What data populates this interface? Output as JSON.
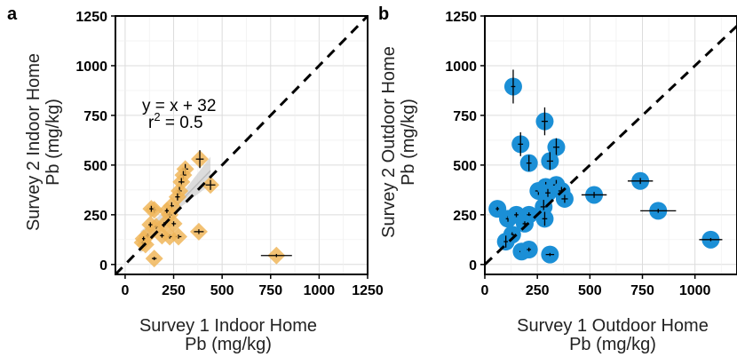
{
  "chart_data": [
    {
      "panel": "a",
      "type": "scatter",
      "xlabel": [
        "Survey 1 Indoor Home",
        "Pb (mg/kg)"
      ],
      "ylabel": [
        "Survey 2 Indoor Home",
        "Pb (mg/kg)"
      ],
      "xlim": [
        -50,
        1250
      ],
      "ylim": [
        -50,
        1250
      ],
      "xticks": [
        0,
        250,
        500,
        750,
        1000,
        1250
      ],
      "yticks": [
        0,
        250,
        500,
        750,
        1000,
        1250
      ],
      "grid": true,
      "marker": "diamond",
      "color": "#F0B65A",
      "identity_line": true,
      "annotation": {
        "eq_line1": "y = x + 32",
        "eq_r": "r",
        "eq_sup": "2",
        "eq_rest": " = 0.5"
      },
      "fit": {
        "slope": 1,
        "intercept": 32,
        "x_range": [
          80,
          440
        ],
        "band_color": "#d0d0d0"
      },
      "points": [
        {
          "x": 780,
          "y": 45,
          "ex": 80,
          "ey": 8
        },
        {
          "x": 440,
          "y": 400,
          "ex": 25,
          "ey": 25
        },
        {
          "x": 385,
          "y": 530,
          "ex": 20,
          "ey": 45
        },
        {
          "x": 380,
          "y": 165,
          "ex": 25,
          "ey": 12
        },
        {
          "x": 310,
          "y": 480,
          "ex": 15,
          "ey": 25
        },
        {
          "x": 300,
          "y": 450,
          "ex": 15,
          "ey": 20
        },
        {
          "x": 290,
          "y": 415,
          "ex": 15,
          "ey": 20
        },
        {
          "x": 280,
          "y": 370,
          "ex": 12,
          "ey": 20
        },
        {
          "x": 270,
          "y": 340,
          "ex": 12,
          "ey": 18
        },
        {
          "x": 275,
          "y": 140,
          "ex": 15,
          "ey": 10
        },
        {
          "x": 240,
          "y": 295,
          "ex": 12,
          "ey": 18
        },
        {
          "x": 230,
          "y": 250,
          "ex": 12,
          "ey": 15
        },
        {
          "x": 250,
          "y": 205,
          "ex": 12,
          "ey": 12
        },
        {
          "x": 230,
          "y": 140,
          "ex": 10,
          "ey": 10
        },
        {
          "x": 215,
          "y": 270,
          "ex": 10,
          "ey": 12
        },
        {
          "x": 190,
          "y": 145,
          "ex": 10,
          "ey": 10
        },
        {
          "x": 150,
          "y": 275,
          "ex": 10,
          "ey": 15
        },
        {
          "x": 135,
          "y": 280,
          "ex": 10,
          "ey": 15
        },
        {
          "x": 160,
          "y": 190,
          "ex": 10,
          "ey": 10
        },
        {
          "x": 130,
          "y": 200,
          "ex": 10,
          "ey": 12
        },
        {
          "x": 115,
          "y": 145,
          "ex": 8,
          "ey": 10
        },
        {
          "x": 105,
          "y": 100,
          "ex": 8,
          "ey": 10
        },
        {
          "x": 90,
          "y": 110,
          "ex": 8,
          "ey": 10
        },
        {
          "x": 95,
          "y": 130,
          "ex": 8,
          "ey": 10
        },
        {
          "x": 150,
          "y": 30,
          "ex": 12,
          "ey": 8
        },
        {
          "x": 200,
          "y": 200,
          "ex": 10,
          "ey": 12
        }
      ]
    },
    {
      "panel": "b",
      "type": "scatter",
      "xlabel": [
        "Survey 1 Outdoor Home",
        "Pb (mg/kg)"
      ],
      "ylabel": [
        "Survey 2 Outdoor Home",
        "Pb (mg/kg)"
      ],
      "xlim": [
        0,
        1200
      ],
      "ylim": [
        -50,
        1250
      ],
      "xticks": [
        0,
        250,
        500,
        750,
        1000
      ],
      "yticks": [
        0,
        250,
        500,
        750,
        1000,
        1250
      ],
      "grid": true,
      "marker": "circle",
      "color": "#1B8FD6",
      "identity_line": true,
      "points": [
        {
          "x": 1075,
          "y": 125,
          "ex": 55,
          "ey": 8
        },
        {
          "x": 825,
          "y": 270,
          "ex": 85,
          "ey": 10
        },
        {
          "x": 740,
          "y": 420,
          "ex": 60,
          "ey": 15
        },
        {
          "x": 520,
          "y": 350,
          "ex": 60,
          "ey": 15
        },
        {
          "x": 135,
          "y": 895,
          "ex": 10,
          "ey": 85
        },
        {
          "x": 285,
          "y": 720,
          "ex": 15,
          "ey": 70
        },
        {
          "x": 170,
          "y": 605,
          "ex": 12,
          "ey": 60
        },
        {
          "x": 340,
          "y": 590,
          "ex": 15,
          "ey": 45
        },
        {
          "x": 310,
          "y": 520,
          "ex": 15,
          "ey": 45
        },
        {
          "x": 210,
          "y": 510,
          "ex": 12,
          "ey": 40
        },
        {
          "x": 255,
          "y": 370,
          "ex": 15,
          "ey": 20
        },
        {
          "x": 290,
          "y": 390,
          "ex": 15,
          "ey": 25
        },
        {
          "x": 300,
          "y": 360,
          "ex": 12,
          "ey": 20
        },
        {
          "x": 340,
          "y": 400,
          "ex": 15,
          "ey": 25
        },
        {
          "x": 365,
          "y": 370,
          "ex": 15,
          "ey": 20
        },
        {
          "x": 380,
          "y": 330,
          "ex": 15,
          "ey": 20
        },
        {
          "x": 280,
          "y": 290,
          "ex": 15,
          "ey": 35
        },
        {
          "x": 285,
          "y": 230,
          "ex": 12,
          "ey": 35
        },
        {
          "x": 60,
          "y": 280,
          "ex": 8,
          "ey": 10
        },
        {
          "x": 110,
          "y": 230,
          "ex": 10,
          "ey": 15
        },
        {
          "x": 150,
          "y": 250,
          "ex": 10,
          "ey": 12
        },
        {
          "x": 210,
          "y": 250,
          "ex": 10,
          "ey": 12
        },
        {
          "x": 190,
          "y": 205,
          "ex": 10,
          "ey": 12
        },
        {
          "x": 130,
          "y": 150,
          "ex": 10,
          "ey": 12
        },
        {
          "x": 100,
          "y": 115,
          "ex": 10,
          "ey": 30
        },
        {
          "x": 175,
          "y": 65,
          "ex": 10,
          "ey": 10
        },
        {
          "x": 210,
          "y": 75,
          "ex": 10,
          "ey": 10
        },
        {
          "x": 310,
          "y": 50,
          "ex": 20,
          "ey": 8
        }
      ]
    }
  ]
}
